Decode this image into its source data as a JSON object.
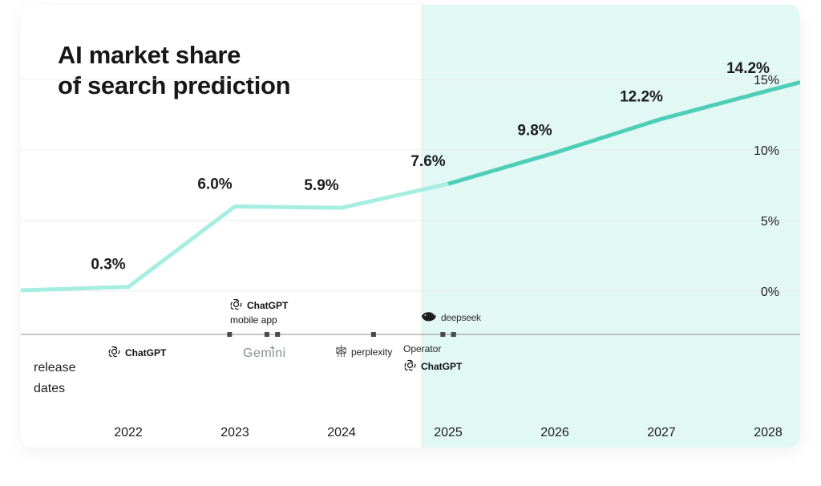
{
  "title_line1": "AI market share",
  "title_line2": "of search prediction",
  "legend_line1": "release",
  "legend_line2": "dates",
  "colors": {
    "actual_line": "#a7eee2",
    "forecast_line": "#4ecdb7",
    "forecast_bg": "#e2f8f4",
    "axis": "#8c8c8c",
    "marker": "#4a4a4a"
  },
  "chart_data": {
    "type": "line",
    "title": "AI market share of search prediction",
    "x": [
      "2022",
      "2023",
      "2024",
      "2025",
      "2026",
      "2027",
      "2028"
    ],
    "series": [
      {
        "values": [
          0.3,
          6.0,
          5.9,
          7.6,
          9.8,
          12.2,
          14.2
        ]
      }
    ],
    "data_labels": [
      "0.3%",
      "6.0%",
      "5.9%",
      "7.6%",
      "9.8%",
      "12.2%",
      "14.2%"
    ],
    "forecast_from": "2025",
    "y_ticks": [
      "0%",
      "5%",
      "10%",
      "15%"
    ],
    "y_tick_values": [
      0,
      5,
      10,
      15
    ],
    "ylim": [
      -3,
      17
    ],
    "y_axis_side": "right",
    "grid": true,
    "releases": [
      {
        "year": 2022.95,
        "name": "ChatGPT"
      },
      {
        "year": 2023.3,
        "name": "ChatGPT",
        "sub": "mobile app"
      },
      {
        "year": 2023.4,
        "name": "Gemini"
      },
      {
        "year": 2024.3,
        "name": "perplexity"
      },
      {
        "year": 2024.95,
        "name": "Operator"
      },
      {
        "year": 2025.05,
        "name": "ChatGPT"
      },
      {
        "year": 2025.05,
        "name": "deepseek"
      }
    ]
  }
}
